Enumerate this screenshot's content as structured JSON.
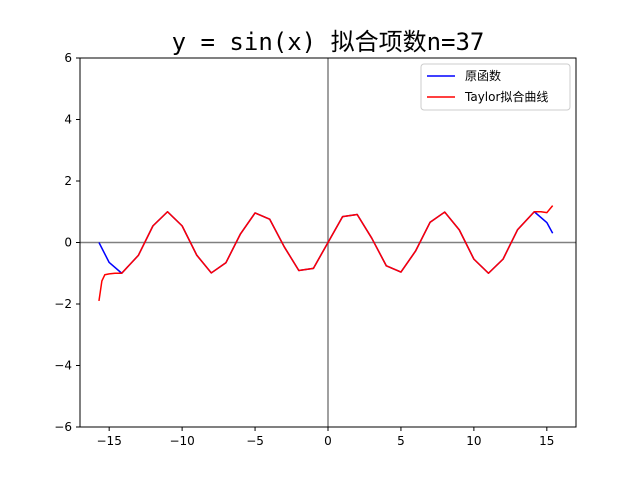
{
  "chart_data": {
    "type": "line",
    "title": "y = sin(x)  拟合项数n=37",
    "xlim": [
      -17,
      17
    ],
    "ylim": [
      -6,
      6
    ],
    "xticks": [
      -15,
      -10,
      -5,
      0,
      5,
      10,
      15
    ],
    "xtick_labels": [
      "−15",
      "−10",
      "−5",
      "0",
      "5",
      "10",
      "15"
    ],
    "yticks": [
      -6,
      -4,
      -2,
      0,
      2,
      4,
      6
    ],
    "ytick_labels": [
      "−6",
      "−4",
      "−2",
      "0",
      "2",
      "4",
      "6"
    ],
    "grid": false,
    "reference_lines": {
      "horizontal_y": 0,
      "vertical_x": 0,
      "color": "#808080"
    },
    "legend_position": "top-right",
    "x_range": [
      -15.7,
      15.4
    ],
    "series": [
      {
        "name": "原函数",
        "color": "#0000ff",
        "function": "sin(x)",
        "x": [
          -15.7,
          -15.0,
          -14.14,
          -13.0,
          -12.0,
          -11.0,
          -10.0,
          -9.0,
          -8.0,
          -7.0,
          -6.0,
          -5.0,
          -4.0,
          -3.0,
          -2.0,
          -1.0,
          0.0,
          1.0,
          2.0,
          3.0,
          4.0,
          5.0,
          6.0,
          7.0,
          8.0,
          9.0,
          10.0,
          11.0,
          12.0,
          13.0,
          14.14,
          15.0,
          15.4
        ],
        "y": [
          0.0,
          -0.65,
          -1.0,
          -0.42,
          0.54,
          1.0,
          0.54,
          -0.41,
          -0.99,
          -0.66,
          0.28,
          0.96,
          0.76,
          -0.14,
          -0.91,
          -0.84,
          0.0,
          0.84,
          0.91,
          0.14,
          -0.76,
          -0.96,
          -0.28,
          0.66,
          0.99,
          0.41,
          -0.54,
          -1.0,
          -0.54,
          0.42,
          1.0,
          0.65,
          0.3
        ]
      },
      {
        "name": "Taylor拟合曲线",
        "color": "#ff0000",
        "function": "Taylor series of sin(x), 37 terms",
        "x": [
          -15.7,
          -15.5,
          -15.3,
          -15.0,
          -14.6,
          -14.14,
          -13.0,
          -12.0,
          -11.0,
          -10.0,
          -9.0,
          -8.0,
          -7.0,
          -6.0,
          -5.0,
          -4.0,
          -3.0,
          -2.0,
          -1.0,
          0.0,
          1.0,
          2.0,
          3.0,
          4.0,
          5.0,
          6.0,
          7.0,
          8.0,
          9.0,
          10.0,
          11.0,
          12.0,
          13.0,
          14.14,
          14.6,
          15.0,
          15.4
        ],
        "y": [
          -1.9,
          -1.25,
          -1.05,
          -1.02,
          -1.0,
          -1.0,
          -0.42,
          0.54,
          1.0,
          0.54,
          -0.41,
          -0.99,
          -0.66,
          0.28,
          0.96,
          0.76,
          -0.14,
          -0.91,
          -0.84,
          0.0,
          0.84,
          0.91,
          0.14,
          -0.76,
          -0.96,
          -0.28,
          0.66,
          0.99,
          0.41,
          -0.54,
          -1.0,
          -0.54,
          0.42,
          1.0,
          1.0,
          0.97,
          1.2
        ]
      }
    ]
  }
}
